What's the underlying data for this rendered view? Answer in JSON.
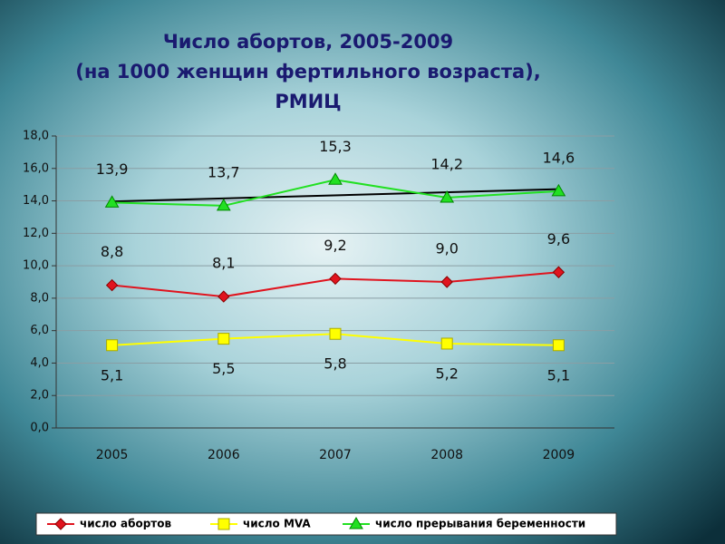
{
  "chart_data": {
    "type": "line",
    "title": [
      "Число абортов, 2005-2009",
      "(на 1000 женщин фертильного возраста),",
      "РМИЦ"
    ],
    "categories": [
      "2005",
      "2006",
      "2007",
      "2008",
      "2009"
    ],
    "series": [
      {
        "name": "число абортов",
        "color": "#e0141e",
        "marker": "diamond",
        "values": [
          8.8,
          8.1,
          9.2,
          9.0,
          9.6
        ],
        "value_labels": [
          "8,8",
          "8,1",
          "9,2",
          "9,0",
          "9,6"
        ]
      },
      {
        "name": "число MVA",
        "color": "#ffff00",
        "marker": "square",
        "values": [
          5.1,
          5.5,
          5.8,
          5.2,
          5.1
        ],
        "value_labels": [
          "5,1",
          "5,5",
          "5,8",
          "5,2",
          "5,1"
        ]
      },
      {
        "name": "число прерывания беременности",
        "color": "#22e022",
        "marker": "triangle",
        "trendline": true,
        "values": [
          13.9,
          13.7,
          15.3,
          14.2,
          14.6
        ],
        "value_labels": [
          "13,9",
          "13,7",
          "15,3",
          "14,2",
          "14,6"
        ]
      }
    ],
    "ylim": [
      0,
      18
    ],
    "yticks": [
      {
        "value": 0,
        "label": "0,0"
      },
      {
        "value": 2,
        "label": "2,0"
      },
      {
        "value": 4,
        "label": "4,0"
      },
      {
        "value": 6,
        "label": "6,0"
      },
      {
        "value": 8,
        "label": "8,0"
      },
      {
        "value": 10,
        "label": "10,0"
      },
      {
        "value": 12,
        "label": "12,0"
      },
      {
        "value": 14,
        "label": "14,0"
      },
      {
        "value": 16,
        "label": "16,0"
      },
      {
        "value": 18,
        "label": "18,0"
      }
    ],
    "grid": true,
    "legend": "bottom"
  }
}
